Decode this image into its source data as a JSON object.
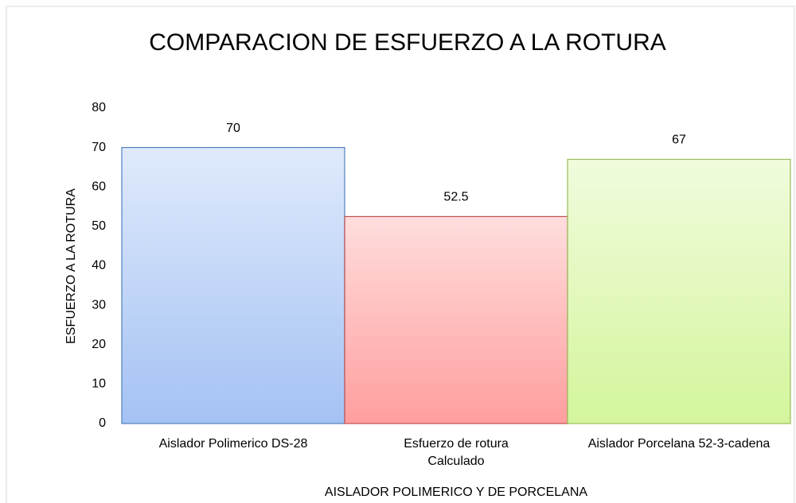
{
  "chart_data": {
    "type": "bar",
    "title": "COMPARACION DE ESFUERZO A LA ROTURA",
    "x_label": "AISLADOR POLIMERICO Y DE PORCELANA",
    "y_label": "ESFUERZO A LA ROTURA",
    "categories": [
      "Aislador Polimerico DS-28",
      "Esfuerzo de rotura Calculado",
      "Aislador Porcelana 52-3-cadena"
    ],
    "values": [
      70,
      52.5,
      67
    ],
    "colors": [
      "#a4c2f4",
      "#ff9e9e",
      "#d4f59c"
    ],
    "edge_colors": [
      "#4f81bd",
      "#c0504d",
      "#9bbb59"
    ],
    "ylim": [
      0,
      80
    ],
    "yticks": [
      0,
      10,
      20,
      30,
      40,
      50,
      60,
      70,
      80
    ],
    "grid": false
  }
}
